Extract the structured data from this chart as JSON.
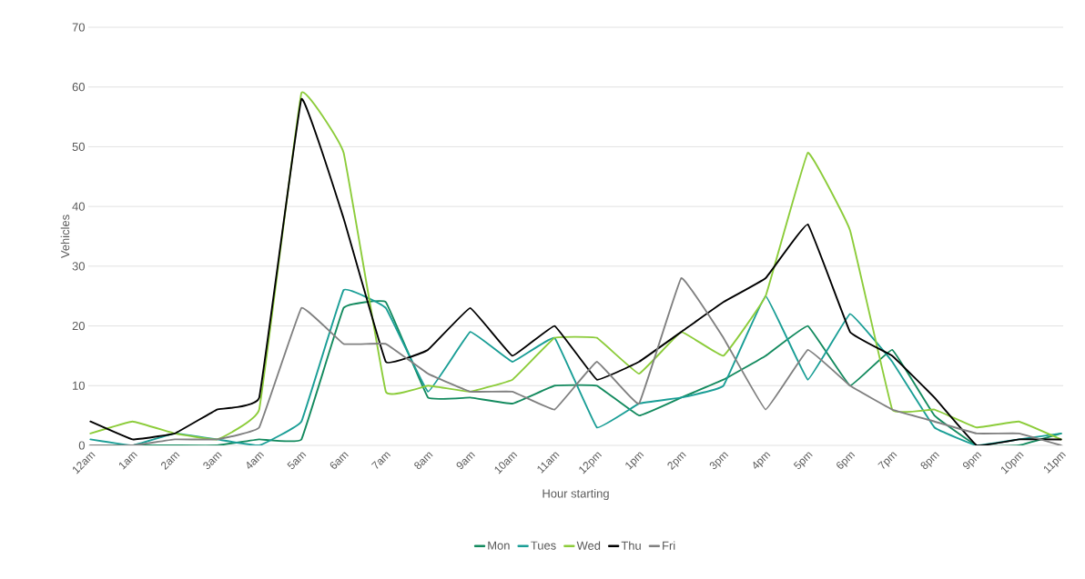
{
  "chart_data": {
    "type": "line",
    "xlabel": "Hour starting",
    "ylabel": "Vehicles",
    "categories": [
      "12am",
      "1am",
      "2am",
      "3am",
      "4am",
      "5am",
      "6am",
      "7am",
      "8am",
      "9am",
      "10am",
      "11am",
      "12pm",
      "1pm",
      "2pm",
      "3pm",
      "4pm",
      "5pm",
      "6pm",
      "7pm",
      "8pm",
      "9pm",
      "10pm",
      "11pm"
    ],
    "series": [
      {
        "name": "Mon",
        "color": "#138a5e",
        "values": [
          0,
          0,
          0,
          0,
          1,
          1,
          23,
          24,
          8,
          8,
          7,
          10,
          10,
          5,
          8,
          11,
          15,
          20,
          10,
          16,
          5,
          0,
          0,
          2
        ]
      },
      {
        "name": "Tues",
        "color": "#1a9e96",
        "values": [
          1,
          0,
          2,
          1,
          0,
          4,
          26,
          23,
          9,
          19,
          14,
          18,
          3,
          7,
          8,
          10,
          25,
          11,
          22,
          14,
          3,
          0,
          1,
          2
        ]
      },
      {
        "name": "Wed",
        "color": "#8ccc3a",
        "values": [
          2,
          4,
          2,
          1,
          6,
          59,
          49,
          9,
          10,
          9,
          11,
          18,
          18,
          12,
          19,
          15,
          25,
          49,
          36,
          6,
          6,
          3,
          4,
          1
        ]
      },
      {
        "name": "Thu",
        "color": "#000000",
        "values": [
          4,
          1,
          2,
          6,
          8,
          58,
          38,
          14,
          16,
          23,
          15,
          20,
          11,
          14,
          19,
          24,
          28,
          37,
          19,
          15,
          8,
          0,
          1,
          1
        ]
      },
      {
        "name": "Fri",
        "color": "#808080",
        "values": [
          0,
          0,
          1,
          1,
          3,
          23,
          17,
          17,
          12,
          9,
          9,
          6,
          14,
          7,
          28,
          18,
          6,
          16,
          10,
          6,
          4,
          2,
          2,
          0
        ]
      }
    ],
    "ylim": [
      0,
      70
    ],
    "yticks": [
      0,
      10,
      20,
      30,
      40,
      50,
      60,
      70
    ],
    "grid": "y",
    "legend": "bottom",
    "marker": "none",
    "line_style": "solid"
  }
}
